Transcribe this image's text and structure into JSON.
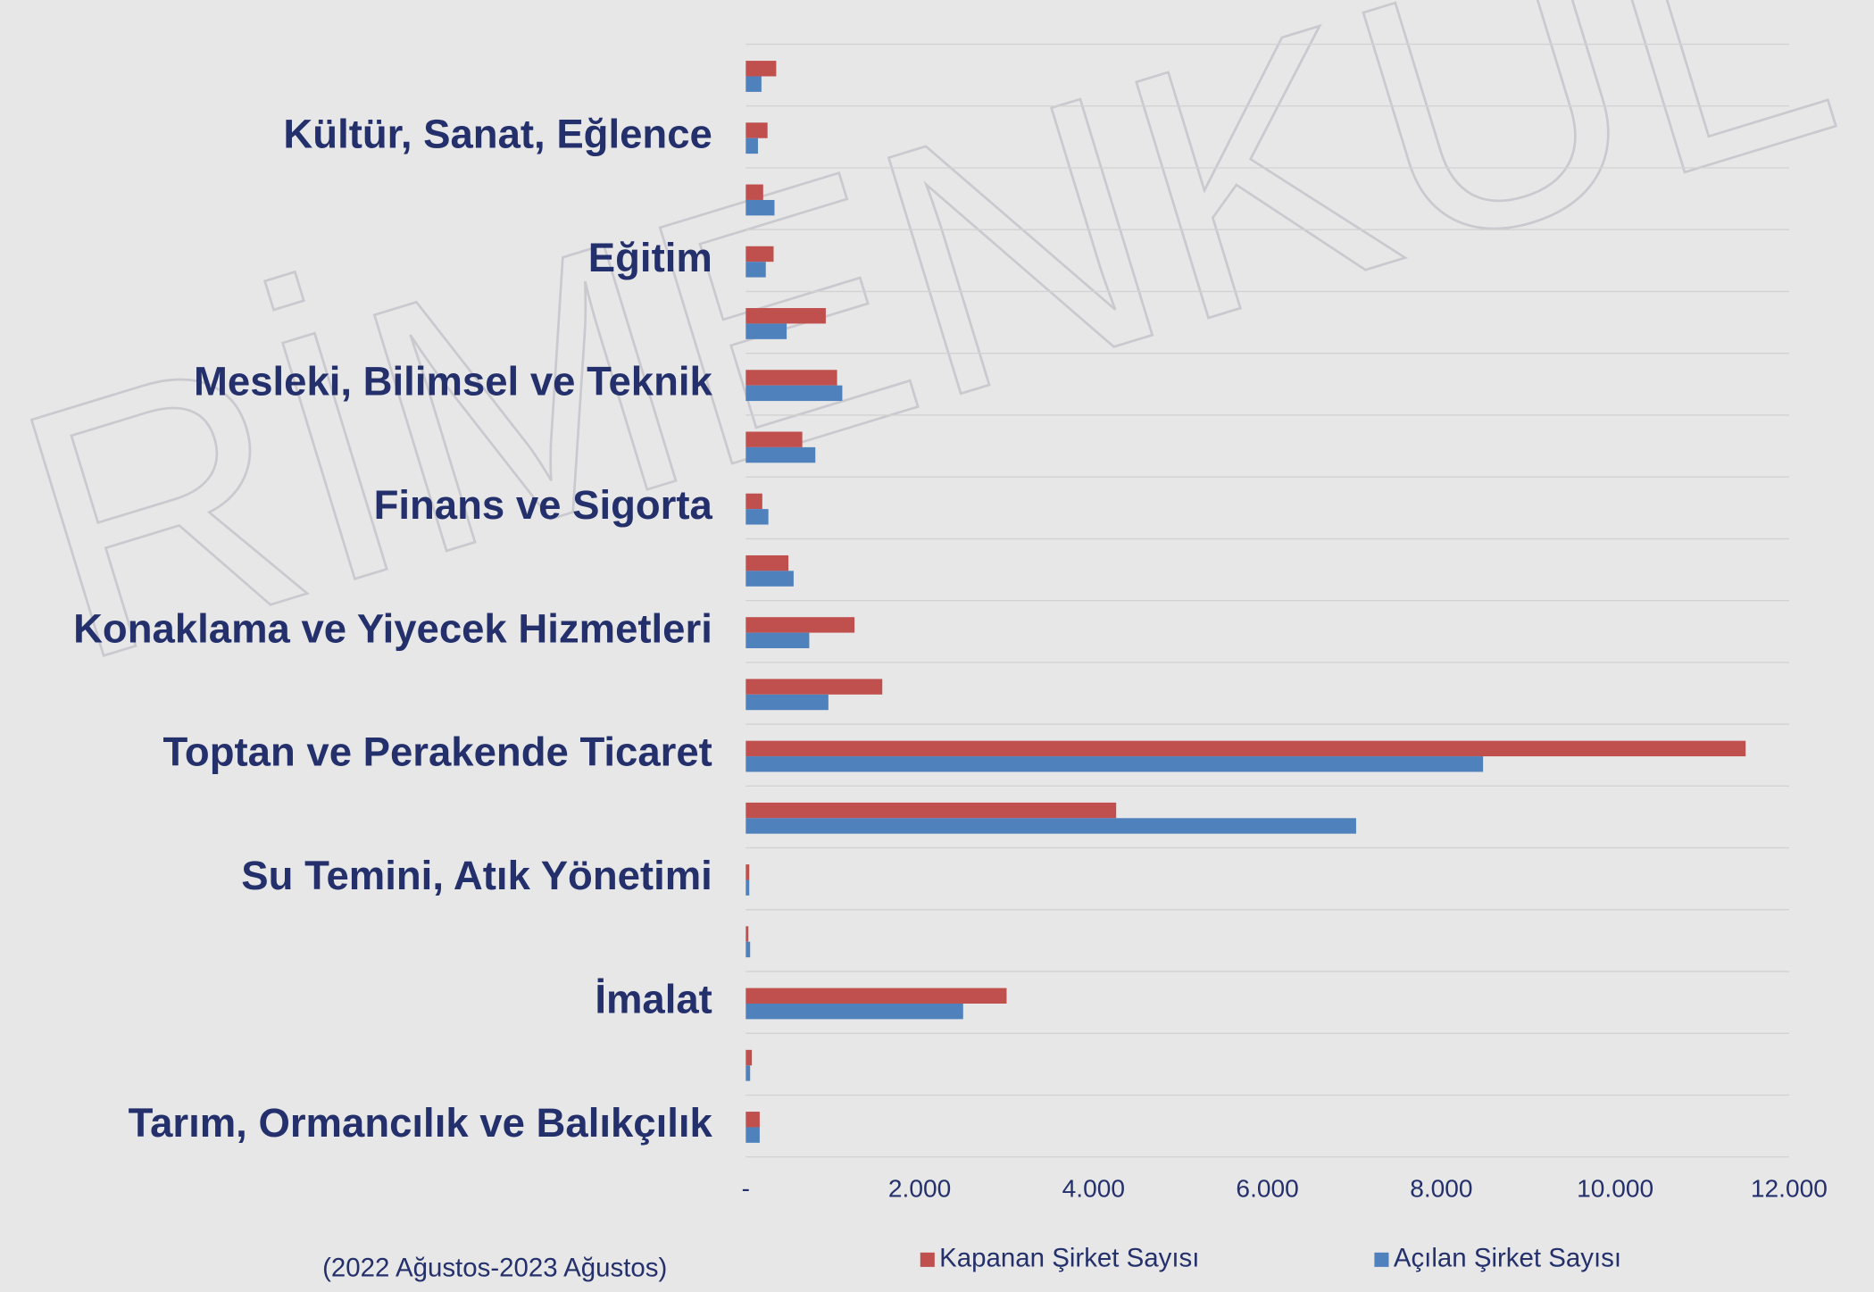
{
  "chart_data": {
    "type": "bar",
    "orientation": "horizontal",
    "watermark": "RİMENKUL",
    "subtitle": "(2022 Ağustos-2023 Ağustos)",
    "categories": [
      null,
      "Kültür, Sanat, Eğlence",
      null,
      "Eğitim",
      null,
      "Mesleki, Bilimsel ve Teknik",
      null,
      "Finans ve Sigorta",
      null,
      "Konaklama ve Yiyecek Hizmetleri",
      null,
      "Toptan ve Perakende Ticaret",
      null,
      "Su Temini, Atık Yönetimi",
      null,
      "İmalat",
      null,
      "Tarım, Ormancılık ve Balıkçılık"
    ],
    "series": [
      {
        "name": "Kapanan Şirket Sayısı",
        "color": "#c0504d",
        "values": [
          350,
          250,
          200,
          320,
          920,
          1050,
          650,
          190,
          490,
          1250,
          1570,
          11500,
          4260,
          40,
          30,
          3000,
          70,
          160
        ]
      },
      {
        "name": "Açılan Şirket Sayısı",
        "color": "#4f81bd",
        "values": [
          180,
          140,
          330,
          230,
          470,
          1110,
          800,
          260,
          550,
          730,
          950,
          8480,
          7020,
          40,
          50,
          2500,
          50,
          160
        ]
      }
    ],
    "xlim": [
      0,
      12000
    ],
    "xticks": [
      {
        "value": 0,
        "label": "-"
      },
      {
        "value": 2000,
        "label": "2.000"
      },
      {
        "value": 4000,
        "label": "4.000"
      },
      {
        "value": 6000,
        "label": "6.000"
      },
      {
        "value": 8000,
        "label": "8.000"
      },
      {
        "value": 10000,
        "label": "10.000"
      },
      {
        "value": 12000,
        "label": "12.000"
      }
    ],
    "grid": true
  }
}
